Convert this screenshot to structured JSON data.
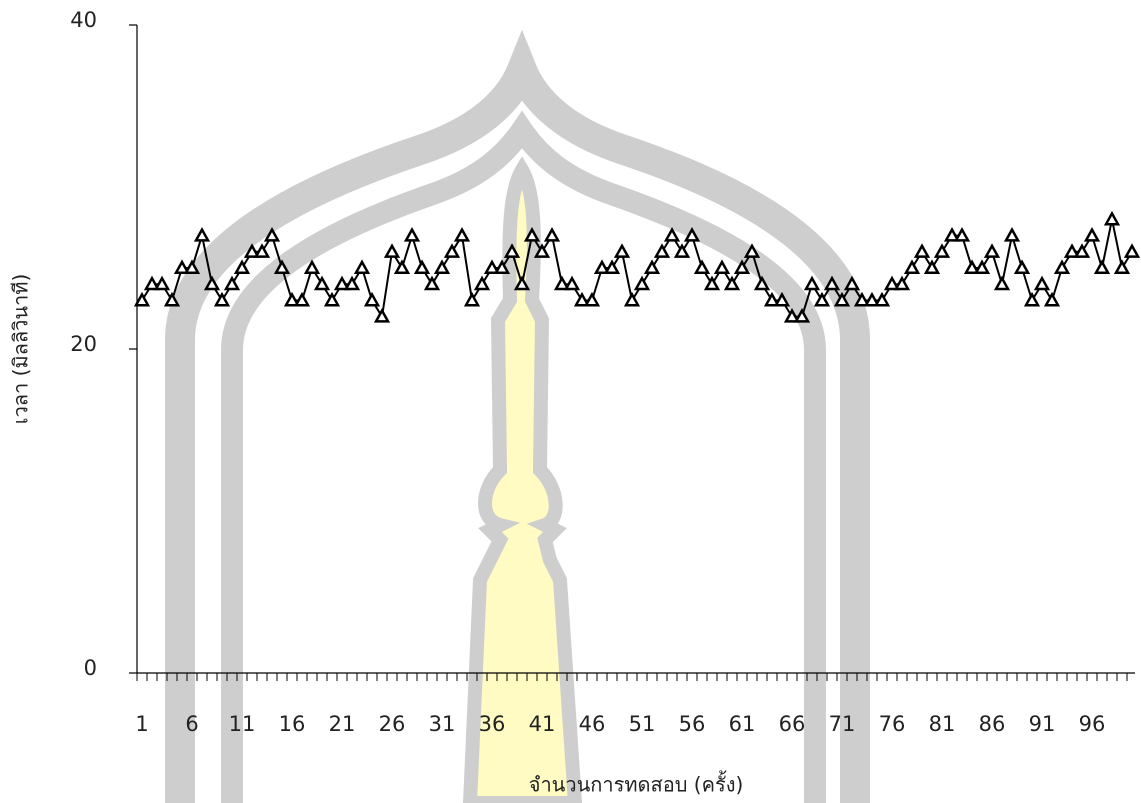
{
  "chart_data": {
    "type": "line",
    "x_label": "จำนวนการทดสอบ (ครั้ง)",
    "y_label": "เวลา (มิลลิวินาที)",
    "categories": [
      1,
      null,
      null,
      null,
      null,
      6,
      null,
      null,
      null,
      null,
      11,
      null,
      null,
      null,
      null,
      16,
      null,
      null,
      null,
      null,
      21,
      null,
      null,
      null,
      null,
      26,
      null,
      null,
      null,
      null,
      31,
      null,
      null,
      null,
      null,
      36,
      null,
      null,
      null,
      null,
      41,
      null,
      null,
      null,
      null,
      46,
      null,
      null,
      null,
      null,
      51,
      null,
      null,
      null,
      null,
      56,
      null,
      null,
      null,
      null,
      61,
      null,
      null,
      null,
      null,
      66,
      null,
      null,
      null,
      null,
      71,
      null,
      null,
      null,
      null,
      76,
      null,
      null,
      null,
      null,
      81,
      null,
      null,
      null,
      null,
      86,
      null,
      null,
      null,
      null,
      91,
      null,
      null,
      null,
      null,
      96,
      null,
      null,
      null,
      null
    ],
    "values": [
      23,
      24,
      24,
      23,
      25,
      25,
      27,
      24,
      23,
      24,
      25,
      26,
      26,
      27,
      25,
      23,
      23,
      25,
      24,
      23,
      24,
      24,
      25,
      23,
      22,
      26,
      25,
      27,
      25,
      24,
      25,
      26,
      27,
      23,
      24,
      25,
      25,
      26,
      24,
      27,
      26,
      27,
      24,
      24,
      23,
      23,
      25,
      25,
      26,
      23,
      24,
      25,
      26,
      27,
      26,
      27,
      25,
      24,
      25,
      24,
      25,
      26,
      24,
      23,
      23,
      22,
      22,
      24,
      23,
      24,
      23,
      24,
      23,
      23,
      23,
      24,
      24,
      25,
      26,
      25,
      26,
      27,
      27,
      25,
      25,
      26,
      24,
      27,
      25,
      23,
      24,
      23,
      25,
      26,
      26,
      27,
      25,
      28,
      25,
      26
    ],
    "color": "#000000",
    "marker": "triangle",
    "ylim": [
      0,
      40
    ],
    "yticks": [
      0,
      20,
      40
    ],
    "grid": false
  }
}
